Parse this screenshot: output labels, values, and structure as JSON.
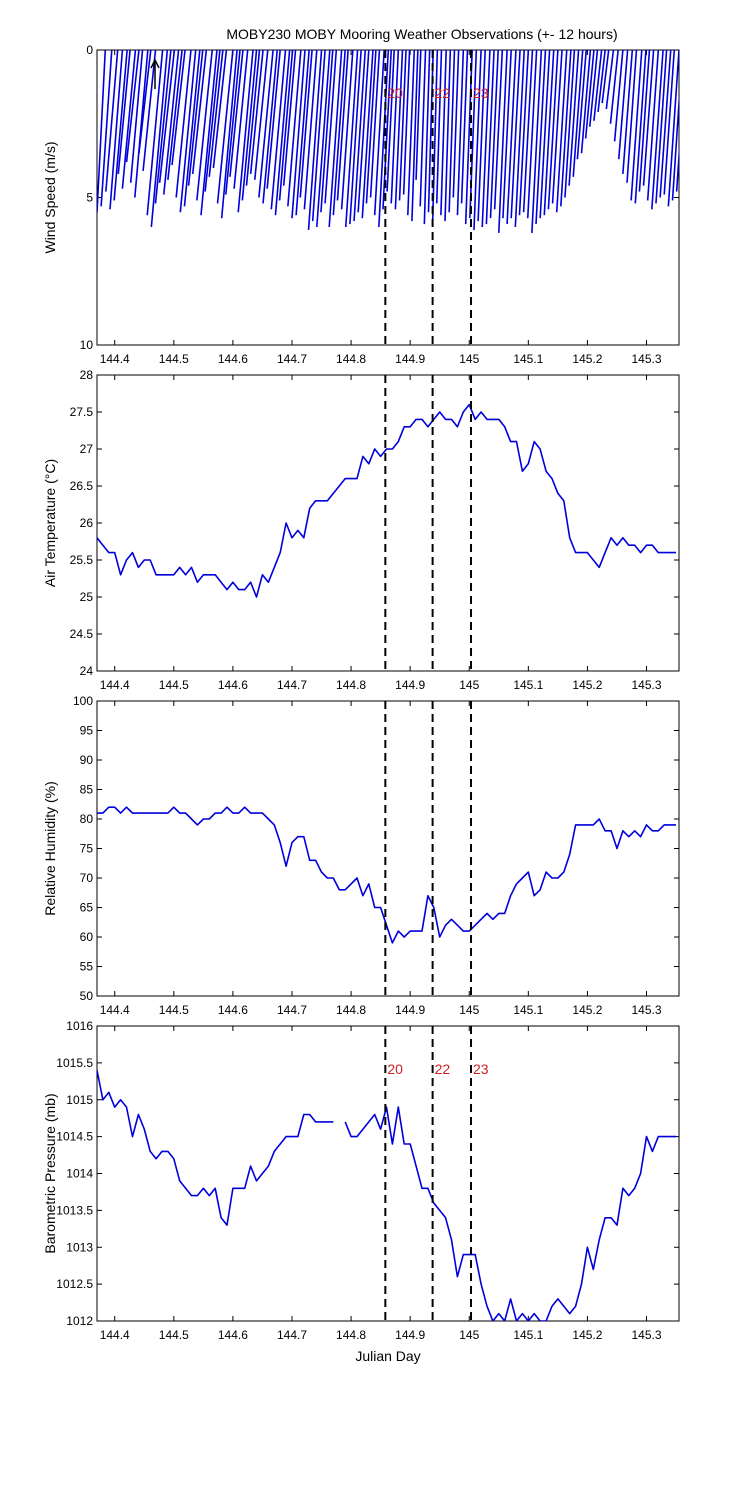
{
  "title": "MOBY230 MOBY Mooring Weather Observations (+- 12 hours)",
  "colors": {
    "series": "#0000dd",
    "marker_label": "#cc2222",
    "axis": "#000000"
  },
  "x_ticks": [
    "144.4",
    "144.5",
    "144.6",
    "144.7",
    "144.8",
    "144.9",
    "145",
    "145.1",
    "145.2",
    "145.3"
  ],
  "x_range": [
    144.37,
    145.355
  ],
  "markers": [
    {
      "x": 144.858,
      "label": "20"
    },
    {
      "x": 144.938,
      "label": "22"
    },
    {
      "x": 145.003,
      "label": "23"
    }
  ],
  "chart_data": [
    {
      "type": "vector",
      "ylabel": "Wind Speed (m/s)",
      "xlabel": "",
      "ylim": [
        0,
        10
      ],
      "y_reversed": true,
      "y_ticks": [
        "0",
        "5",
        "10"
      ],
      "show_marker_labels": true,
      "grid": false,
      "tail_x": [
        144.37,
        144.377,
        144.385,
        144.392,
        144.399,
        144.406,
        144.413,
        144.42,
        144.427,
        144.434,
        144.441,
        144.448,
        144.455,
        144.462,
        144.469,
        144.476,
        144.483,
        144.49,
        144.497,
        144.504,
        144.511,
        144.518,
        144.525,
        144.532,
        144.539,
        144.546,
        144.553,
        144.56,
        144.567,
        144.574,
        144.581,
        144.588,
        144.595,
        144.602,
        144.609,
        144.616,
        144.623,
        144.63,
        144.637,
        144.644,
        144.651,
        144.658,
        144.665,
        144.672,
        144.679,
        144.686,
        144.693,
        144.7,
        144.707,
        144.714,
        144.721,
        144.728,
        144.735,
        144.742,
        144.749,
        144.756,
        144.763,
        144.77,
        144.777,
        144.784,
        144.791,
        144.798,
        144.805,
        144.812,
        144.819,
        144.826,
        144.833,
        144.84,
        144.847,
        144.854,
        144.861,
        144.868,
        144.875,
        144.882,
        144.889,
        144.896,
        144.903,
        144.91,
        144.917,
        144.924,
        144.931,
        144.938,
        144.945,
        144.952,
        144.959,
        144.966,
        144.973,
        144.98,
        144.987,
        144.994,
        145.001,
        145.008,
        145.015,
        145.022,
        145.029,
        145.036,
        145.043,
        145.05,
        145.057,
        145.064,
        145.071,
        145.078,
        145.085,
        145.092,
        145.099,
        145.106,
        145.113,
        145.12,
        145.127,
        145.134,
        145.141,
        145.148,
        145.155,
        145.162,
        145.169,
        145.176,
        145.183,
        145.19,
        145.197,
        145.204,
        145.211,
        145.218,
        145.225,
        145.232,
        145.239,
        145.246,
        145.253,
        145.26,
        145.267,
        145.274,
        145.281,
        145.288,
        145.295,
        145.302,
        145.309,
        145.316,
        145.323,
        145.33,
        145.337,
        145.344,
        145.351
      ],
      "speed": [
        5.5,
        5.3,
        4.8,
        5.4,
        5.1,
        4.2,
        4.7,
        3.8,
        4.5,
        5.0,
        3.5,
        4.1,
        5.6,
        6.0,
        5.2,
        4.5,
        4.9,
        4.4,
        3.9,
        5.0,
        5.5,
        5.3,
        4.6,
        4.2,
        5.1,
        5.6,
        4.8,
        4.3,
        4.0,
        5.2,
        5.7,
        4.9,
        4.3,
        4.7,
        5.5,
        5.1,
        4.6,
        4.2,
        4.4,
        5.0,
        5.2,
        4.7,
        5.4,
        5.6,
        5.1,
        4.6,
        5.3,
        5.7,
        5.6,
        5.0,
        5.4,
        6.1,
        5.8,
        6.0,
        5.5,
        5.2,
        6.0,
        5.6,
        5.1,
        5.4,
        6.0,
        5.9,
        5.8,
        5.5,
        5.7,
        5.2,
        5.0,
        5.6,
        6.0,
        5.4,
        4.8,
        5.2,
        5.4,
        5.1,
        4.9,
        5.6,
        5.8,
        4.4,
        5.3,
        5.9,
        5.5,
        5.9,
        5.2,
        5.6,
        5.8,
        5.5,
        5.0,
        5.6,
        5.2,
        5.9,
        5.7,
        6.1,
        5.8,
        6.0,
        5.9,
        5.7,
        5.4,
        6.2,
        5.7,
        5.9,
        5.7,
        6.0,
        5.6,
        5.5,
        5.7,
        6.2,
        5.9,
        5.7,
        5.6,
        5.4,
        5.2,
        5.5,
        5.3,
        5.0,
        4.6,
        4.3,
        3.7,
        3.5,
        3.0,
        2.6,
        2.4,
        2.1,
        1.8,
        2.0,
        2.5,
        3.1,
        3.7,
        4.2,
        4.5,
        5.1,
        5.2,
        4.8,
        4.6,
        5.1,
        5.4,
        5.2,
        5.0,
        4.9,
        5.3,
        5.1,
        4.8
      ],
      "dx_days": [
        0.014,
        0.018,
        0.02,
        0.021,
        0.022,
        0.02,
        0.022,
        0.021,
        0.02,
        0.022,
        0.02,
        0.021,
        0.026,
        0.027,
        0.026,
        0.025,
        0.025,
        0.024,
        0.022,
        0.025,
        0.026,
        0.026,
        0.024,
        0.023,
        0.026,
        0.027,
        0.025,
        0.023,
        0.022,
        0.026,
        0.026,
        0.024,
        0.022,
        0.023,
        0.025,
        0.024,
        0.022,
        0.021,
        0.022,
        0.024,
        0.024,
        0.022,
        0.024,
        0.024,
        0.022,
        0.02,
        0.022,
        0.022,
        0.022,
        0.02,
        0.021,
        0.022,
        0.021,
        0.022,
        0.02,
        0.019,
        0.021,
        0.02,
        0.018,
        0.019,
        0.02,
        0.019,
        0.019,
        0.018,
        0.018,
        0.016,
        0.015,
        0.016,
        0.016,
        0.014,
        0.012,
        0.012,
        0.012,
        0.011,
        0.01,
        0.011,
        0.01,
        0.008,
        0.009,
        0.009,
        0.008,
        0.008,
        0.008,
        0.009,
        0.009,
        0.009,
        0.009,
        0.01,
        0.01,
        0.011,
        0.011,
        0.012,
        0.012,
        0.013,
        0.013,
        0.013,
        0.013,
        0.014,
        0.014,
        0.015,
        0.015,
        0.015,
        0.015,
        0.015,
        0.015,
        0.016,
        0.016,
        0.016,
        0.016,
        0.016,
        0.016,
        0.017,
        0.017,
        0.016,
        0.016,
        0.016,
        0.015,
        0.015,
        0.014,
        0.013,
        0.013,
        0.012,
        0.011,
        0.012,
        0.013,
        0.014,
        0.015,
        0.016,
        0.016,
        0.018,
        0.018,
        0.017,
        0.017,
        0.018,
        0.019,
        0.018,
        0.018,
        0.017,
        0.018,
        0.017,
        0.016
      ]
    },
    {
      "type": "line",
      "ylabel": "Air Temperature (°C)",
      "xlabel": "",
      "ylim": [
        24,
        28
      ],
      "y_ticks": [
        "24",
        "24.5",
        "25",
        "25.5",
        "26",
        "26.5",
        "27",
        "27.5",
        "28"
      ],
      "show_marker_labels": false,
      "grid": false,
      "x": [
        144.37,
        144.38,
        144.39,
        144.4,
        144.41,
        144.42,
        144.43,
        144.44,
        144.45,
        144.46,
        144.47,
        144.48,
        144.49,
        144.5,
        144.51,
        144.52,
        144.53,
        144.54,
        144.55,
        144.56,
        144.57,
        144.58,
        144.59,
        144.6,
        144.61,
        144.62,
        144.63,
        144.64,
        144.65,
        144.66,
        144.67,
        144.68,
        144.69,
        144.7,
        144.71,
        144.72,
        144.73,
        144.74,
        144.75,
        144.76,
        144.77,
        144.78,
        144.79,
        144.8,
        144.81,
        144.82,
        144.83,
        144.84,
        144.85,
        144.86,
        144.87,
        144.88,
        144.89,
        144.9,
        144.91,
        144.92,
        144.93,
        144.94,
        144.95,
        144.96,
        144.97,
        144.98,
        144.99,
        145.0,
        145.01,
        145.02,
        145.03,
        145.04,
        145.05,
        145.06,
        145.07,
        145.08,
        145.09,
        145.1,
        145.11,
        145.12,
        145.13,
        145.14,
        145.15,
        145.16,
        145.17,
        145.18,
        145.19,
        145.2,
        145.21,
        145.22,
        145.23,
        145.24,
        145.25,
        145.26,
        145.27,
        145.28,
        145.29,
        145.3,
        145.31,
        145.32,
        145.33,
        145.34,
        145.35
      ],
      "values": [
        25.8,
        25.7,
        25.6,
        25.6,
        25.3,
        25.5,
        25.6,
        25.4,
        25.5,
        25.5,
        25.3,
        25.3,
        25.3,
        25.3,
        25.4,
        25.3,
        25.4,
        25.2,
        25.3,
        25.3,
        25.3,
        25.2,
        25.1,
        25.2,
        25.1,
        25.1,
        25.2,
        25.0,
        25.3,
        25.2,
        25.4,
        25.6,
        26.0,
        25.8,
        25.9,
        25.8,
        26.2,
        26.3,
        26.3,
        26.3,
        26.4,
        26.5,
        26.6,
        26.6,
        26.6,
        26.9,
        26.8,
        27.0,
        26.9,
        27.0,
        27.0,
        27.1,
        27.3,
        27.3,
        27.4,
        27.4,
        27.3,
        27.4,
        27.5,
        27.4,
        27.4,
        27.3,
        27.5,
        27.6,
        27.4,
        27.5,
        27.4,
        27.4,
        27.4,
        27.3,
        27.1,
        27.1,
        26.7,
        26.8,
        27.1,
        27.0,
        26.7,
        26.6,
        26.4,
        26.3,
        25.8,
        25.6,
        25.6,
        25.6,
        25.5,
        25.4,
        25.6,
        25.8,
        25.7,
        25.8,
        25.7,
        25.7,
        25.6,
        25.7,
        25.7,
        25.6,
        25.6,
        25.6,
        25.6
      ]
    },
    {
      "type": "line",
      "ylabel": "Relative Humidity (%)",
      "xlabel": "",
      "ylim": [
        50,
        100
      ],
      "y_ticks": [
        "50",
        "55",
        "60",
        "65",
        "70",
        "75",
        "80",
        "85",
        "90",
        "95",
        "100"
      ],
      "show_marker_labels": false,
      "grid": false,
      "x": [
        144.37,
        144.38,
        144.39,
        144.4,
        144.41,
        144.42,
        144.43,
        144.44,
        144.45,
        144.46,
        144.47,
        144.48,
        144.49,
        144.5,
        144.51,
        144.52,
        144.53,
        144.54,
        144.55,
        144.56,
        144.57,
        144.58,
        144.59,
        144.6,
        144.61,
        144.62,
        144.63,
        144.64,
        144.65,
        144.66,
        144.67,
        144.68,
        144.69,
        144.7,
        144.71,
        144.72,
        144.73,
        144.74,
        144.75,
        144.76,
        144.77,
        144.78,
        144.79,
        144.8,
        144.81,
        144.82,
        144.83,
        144.84,
        144.85,
        144.86,
        144.87,
        144.88,
        144.89,
        144.9,
        144.91,
        144.92,
        144.93,
        144.94,
        144.95,
        144.96,
        144.97,
        144.98,
        144.99,
        145.0,
        145.01,
        145.02,
        145.03,
        145.04,
        145.05,
        145.06,
        145.07,
        145.08,
        145.09,
        145.1,
        145.11,
        145.12,
        145.13,
        145.14,
        145.15,
        145.16,
        145.17,
        145.18,
        145.19,
        145.2,
        145.21,
        145.22,
        145.23,
        145.24,
        145.25,
        145.26,
        145.27,
        145.28,
        145.29,
        145.3,
        145.31,
        145.32,
        145.33,
        145.34,
        145.35
      ],
      "values": [
        81,
        81,
        82,
        82,
        81,
        82,
        81,
        81,
        81,
        81,
        81,
        81,
        81,
        82,
        81,
        81,
        80,
        79,
        80,
        80,
        81,
        81,
        82,
        81,
        81,
        82,
        81,
        81,
        81,
        80,
        79,
        76,
        72,
        76,
        77,
        77,
        73,
        73,
        71,
        70,
        70,
        68,
        68,
        69,
        70,
        67,
        69,
        65,
        65,
        62,
        59,
        61,
        60,
        61,
        61,
        61,
        67,
        65,
        60,
        62,
        63,
        62,
        61,
        61,
        62,
        63,
        64,
        63,
        64,
        64,
        67,
        69,
        70,
        71,
        67,
        68,
        71,
        70,
        70,
        71,
        74,
        79,
        79,
        79,
        79,
        80,
        78,
        78,
        75,
        78,
        77,
        78,
        77,
        79,
        78,
        78,
        79,
        79,
        79
      ]
    },
    {
      "type": "line",
      "ylabel": "Barometric Pressure (mb)",
      "xlabel": "Julian Day",
      "ylim": [
        1012,
        1016
      ],
      "y_ticks": [
        "1012",
        "1012.5",
        "1013",
        "1013.5",
        "1014",
        "1014.5",
        "1015",
        "1015.5",
        "1016"
      ],
      "show_marker_labels": true,
      "grid": false,
      "x": [
        144.37,
        144.38,
        144.39,
        144.4,
        144.41,
        144.42,
        144.43,
        144.44,
        144.45,
        144.46,
        144.47,
        144.48,
        144.49,
        144.5,
        144.51,
        144.52,
        144.53,
        144.54,
        144.55,
        144.56,
        144.57,
        144.58,
        144.59,
        144.6,
        144.61,
        144.62,
        144.63,
        144.64,
        144.65,
        144.66,
        144.67,
        144.68,
        144.69,
        144.7,
        144.71,
        144.72,
        144.73,
        144.74,
        144.75,
        144.76,
        144.77,
        null,
        144.79,
        144.8,
        144.81,
        144.82,
        144.83,
        144.84,
        144.85,
        144.86,
        144.87,
        144.88,
        144.89,
        144.9,
        144.91,
        144.92,
        144.93,
        144.94,
        144.95,
        144.96,
        144.97,
        144.98,
        144.99,
        145.0,
        145.01,
        145.02,
        145.03,
        145.04,
        145.05,
        145.06,
        145.07,
        145.08,
        145.09,
        145.1,
        145.11,
        145.12,
        145.13,
        145.14,
        145.15,
        145.16,
        145.17,
        145.18,
        145.19,
        145.2,
        145.21,
        145.22,
        145.23,
        145.24,
        145.25,
        145.26,
        145.27,
        145.28,
        145.29,
        145.3,
        145.31,
        145.32,
        145.33,
        145.34,
        145.35
      ],
      "values": [
        1015.4,
        1015.0,
        1015.1,
        1014.9,
        1015.0,
        1014.9,
        1014.5,
        1014.8,
        1014.6,
        1014.3,
        1014.2,
        1014.3,
        1014.3,
        1014.2,
        1013.9,
        1013.8,
        1013.7,
        1013.7,
        1013.8,
        1013.7,
        1013.8,
        1013.4,
        1013.3,
        1013.8,
        1013.8,
        1013.8,
        1014.1,
        1013.9,
        1014.0,
        1014.1,
        1014.3,
        1014.4,
        1014.5,
        1014.5,
        1014.5,
        1014.8,
        1014.8,
        1014.7,
        1014.7,
        1014.7,
        1014.7,
        null,
        1014.7,
        1014.5,
        1014.5,
        1014.6,
        1014.7,
        1014.8,
        1014.6,
        1014.9,
        1014.4,
        1014.9,
        1014.4,
        1014.4,
        1014.1,
        1013.8,
        1013.8,
        1013.6,
        1013.5,
        1013.4,
        1013.1,
        1012.6,
        1012.9,
        1012.9,
        1012.9,
        1012.5,
        1012.2,
        1012.0,
        1012.1,
        1012.0,
        1012.3,
        1012.0,
        1012.1,
        1012.0,
        1012.1,
        1012.0,
        1012.0,
        1012.2,
        1012.3,
        1012.2,
        1012.1,
        1012.2,
        1012.5,
        1013.0,
        1012.7,
        1013.1,
        1013.4,
        1013.4,
        1013.3,
        1013.8,
        1013.7,
        1013.8,
        1014.0,
        1014.5,
        1014.3,
        1014.5,
        1014.5,
        1014.5,
        1014.5
      ]
    }
  ]
}
